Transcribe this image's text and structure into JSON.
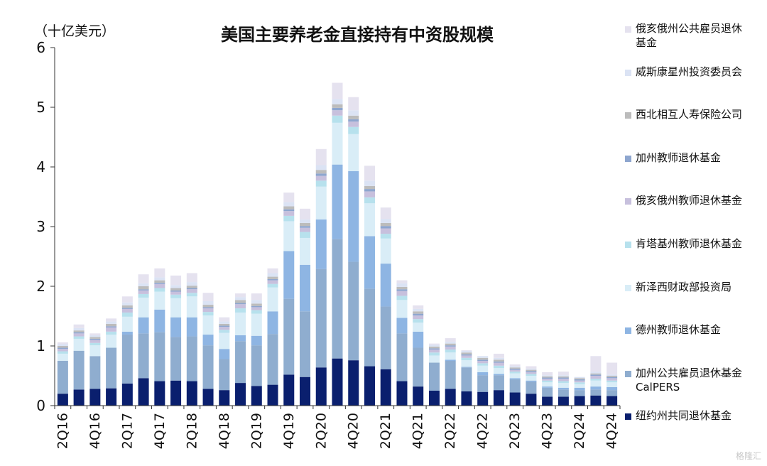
{
  "chart_data": {
    "type": "bar",
    "stacked": true,
    "title": "美国主要养老金直接持有中资股规模",
    "unit_label": "（十亿美元）",
    "ylim": [
      0,
      6
    ],
    "yticks": [
      "0",
      "1",
      "2",
      "3",
      "4",
      "5",
      "6"
    ],
    "x_tick_labels": [
      "2Q16",
      "4Q16",
      "2Q17",
      "4Q17",
      "2Q18",
      "4Q18",
      "2Q19",
      "4Q19",
      "2Q20",
      "4Q20",
      "2Q21",
      "4Q21",
      "2Q22",
      "4Q22",
      "2Q23",
      "4Q23",
      "2Q24",
      "4Q24"
    ],
    "categories": [
      "2Q16",
      "3Q16",
      "4Q16",
      "1Q17",
      "2Q17",
      "3Q17",
      "4Q17",
      "1Q18",
      "2Q18",
      "3Q18",
      "4Q18",
      "1Q19",
      "2Q19",
      "3Q19",
      "4Q19",
      "1Q20",
      "2Q20",
      "3Q20",
      "4Q20",
      "1Q21",
      "2Q21",
      "3Q21",
      "4Q21",
      "1Q22",
      "2Q22",
      "3Q22",
      "4Q22",
      "1Q23",
      "2Q23",
      "3Q23",
      "4Q23",
      "1Q24",
      "2Q24",
      "3Q24",
      "4Q24"
    ],
    "series": [
      {
        "name": "纽约州共同退休基金",
        "color": "#0a1f6e",
        "values": [
          0.2,
          0.27,
          0.28,
          0.29,
          0.37,
          0.46,
          0.41,
          0.42,
          0.41,
          0.28,
          0.26,
          0.38,
          0.33,
          0.35,
          0.52,
          0.48,
          0.64,
          0.79,
          0.76,
          0.66,
          0.61,
          0.41,
          0.32,
          0.25,
          0.28,
          0.24,
          0.23,
          0.26,
          0.22,
          0.2,
          0.15,
          0.15,
          0.16,
          0.17,
          0.16
        ]
      },
      {
        "name": "加州公共雇员退休基金CalPERS",
        "color": "#8fadcf",
        "values": [
          0.55,
          0.65,
          0.55,
          0.68,
          0.82,
          0.75,
          0.82,
          0.73,
          0.75,
          0.73,
          0.52,
          0.7,
          0.68,
          0.85,
          1.27,
          1.1,
          1.65,
          2.0,
          1.65,
          1.3,
          1.05,
          0.8,
          0.65,
          0.47,
          0.47,
          0.4,
          0.28,
          0.25,
          0.22,
          0.2,
          0.15,
          0.12,
          0.1,
          0.1,
          0.1
        ]
      },
      {
        "name": "德州教师退休基金",
        "color": "#8eb5e3",
        "values": [
          0,
          0,
          0,
          0,
          0.05,
          0.27,
          0.38,
          0.33,
          0.32,
          0.18,
          0.17,
          0.1,
          0.16,
          0.38,
          0.8,
          0.78,
          0.83,
          1.25,
          1.52,
          0.88,
          0.72,
          0.26,
          0.27,
          0,
          0.02,
          0.01,
          0.05,
          0.02,
          0.02,
          0.02,
          0.02,
          0.03,
          0.04,
          0.05,
          0.05
        ]
      },
      {
        "name": "新泽西财政部投资局",
        "color": "#d9edf7",
        "values": [
          0.12,
          0.2,
          0.18,
          0.22,
          0.25,
          0.33,
          0.3,
          0.32,
          0.35,
          0.32,
          0.27,
          0.38,
          0.37,
          0.4,
          0.5,
          0.45,
          0.55,
          0.7,
          0.62,
          0.55,
          0.42,
          0.3,
          0.15,
          0.12,
          0.12,
          0.11,
          0.11,
          0.1,
          0.08,
          0.08,
          0.07,
          0.08,
          0.06,
          0.1,
          0.08
        ]
      },
      {
        "name": "肯塔基州教师退休基金",
        "color": "#b7e1ed",
        "values": [
          0.04,
          0.04,
          0.04,
          0.05,
          0.07,
          0.06,
          0.06,
          0.06,
          0.06,
          0.06,
          0.05,
          0.07,
          0.06,
          0.06,
          0.09,
          0.1,
          0.1,
          0.12,
          0.12,
          0.1,
          0.08,
          0.07,
          0.06,
          0.05,
          0.05,
          0.04,
          0.04,
          0.04,
          0.03,
          0.03,
          0.03,
          0.03,
          0.03,
          0.03,
          0.03
        ]
      },
      {
        "name": "俄亥俄州教师退休基金",
        "color": "#c7c0dd",
        "values": [
          0.04,
          0.05,
          0.05,
          0.07,
          0.06,
          0.06,
          0.07,
          0.05,
          0.06,
          0.06,
          0.05,
          0.07,
          0.05,
          0.06,
          0.08,
          0.07,
          0.08,
          0.09,
          0.09,
          0.1,
          0.09,
          0.08,
          0.06,
          0.05,
          0.05,
          0.04,
          0.04,
          0.05,
          0.03,
          0.03,
          0.03,
          0.04,
          0.03,
          0.05,
          0.04
        ]
      },
      {
        "name": "加州教师退休基金",
        "color": "#8ea6cf",
        "values": [
          0.02,
          0.02,
          0.02,
          0.02,
          0.02,
          0.02,
          0.02,
          0.02,
          0.02,
          0.02,
          0.02,
          0.02,
          0.02,
          0.02,
          0.03,
          0.03,
          0.04,
          0.04,
          0.04,
          0.04,
          0.04,
          0.03,
          0.03,
          0.02,
          0.02,
          0.02,
          0.02,
          0.02,
          0.02,
          0.02,
          0.02,
          0.02,
          0.02,
          0.02,
          0.02
        ]
      },
      {
        "name": "西北相互人寿保险公司",
        "color": "#bcbcbc",
        "values": [
          0.03,
          0.03,
          0.03,
          0.04,
          0.04,
          0.05,
          0.04,
          0.04,
          0.04,
          0.04,
          0.03,
          0.05,
          0.04,
          0.04,
          0.05,
          0.05,
          0.06,
          0.06,
          0.06,
          0.05,
          0.05,
          0.04,
          0.04,
          0.03,
          0.03,
          0.03,
          0.03,
          0.03,
          0.02,
          0.02,
          0.02,
          0.02,
          0.02,
          0.02,
          0.02
        ]
      },
      {
        "name": "威斯康星州投资委员会",
        "color": "#dbe3f4",
        "values": [
          0.03,
          0.04,
          0.03,
          0.04,
          0.05,
          0.05,
          0.05,
          0.05,
          0.06,
          0.06,
          0.04,
          0.05,
          0.06,
          0.06,
          0.07,
          0.06,
          0.08,
          0.09,
          0.09,
          0.09,
          0.07,
          0.06,
          0.04,
          0.03,
          0.03,
          0.03,
          0.03,
          0.03,
          0.02,
          0.02,
          0.02,
          0.02,
          0.02,
          0.03,
          0.02
        ]
      },
      {
        "name": "俄亥俄州公共雇员退休基金",
        "color": "#e5e2ef",
        "values": [
          0.03,
          0.06,
          0.03,
          0.05,
          0.1,
          0.15,
          0.15,
          0.16,
          0.15,
          0.14,
          0.07,
          0.06,
          0.11,
          0.08,
          0.16,
          0.18,
          0.27,
          0.27,
          0.22,
          0.25,
          0.19,
          0.05,
          0.06,
          0.02,
          0.06,
          0.01,
          0,
          0.07,
          0.03,
          0.04,
          0.05,
          0.06,
          0,
          0.26,
          0.2
        ]
      }
    ]
  },
  "legend_order": [
    9,
    8,
    7,
    6,
    5,
    4,
    3,
    2,
    1,
    0
  ],
  "legend_labels": [
    "俄亥俄州公共雇员退休\n基金",
    "威斯康星州投资委员会",
    "西北相互人寿保险公司",
    "加州教师退休基金",
    "俄亥俄州教师退休基金",
    "肯塔基州教师退休基金",
    "新泽西财政部投资局",
    "德州教师退休基金",
    "加州公共雇员退休基金\nCalPERS",
    "纽约州共同退休基金"
  ],
  "watermark": "格隆汇"
}
